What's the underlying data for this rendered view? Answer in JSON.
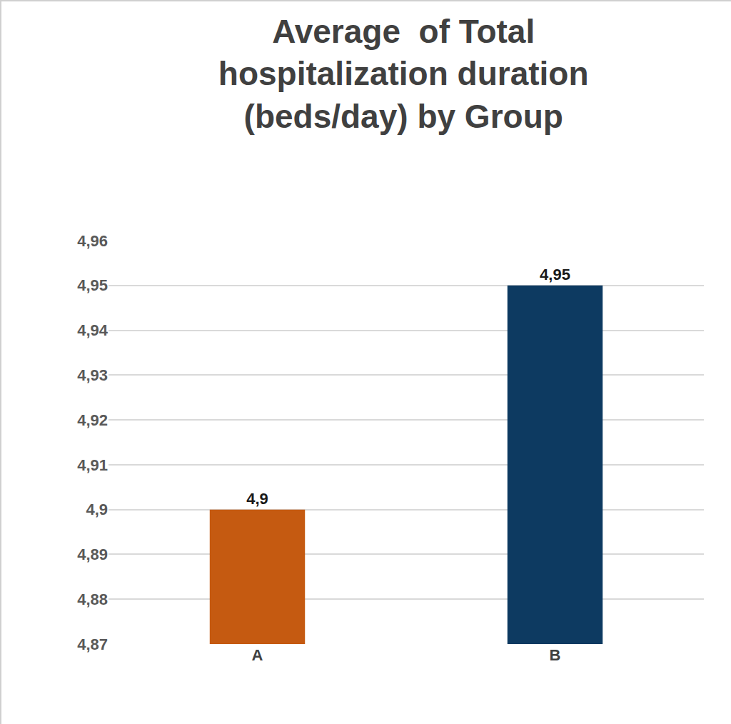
{
  "chart_data": {
    "type": "bar",
    "title": "Average  of Total\nhospitalization duration\n(beds/day) by Group",
    "categories": [
      "A",
      "B"
    ],
    "values": [
      4.9,
      4.95
    ],
    "value_labels": [
      "4,9",
      "4,95"
    ],
    "colors": [
      "#c55a11",
      "#0d3a61"
    ],
    "ylim": [
      4.87,
      4.96
    ],
    "yticks": [
      {
        "value": 4.87,
        "label": "4,87"
      },
      {
        "value": 4.88,
        "label": "4,88"
      },
      {
        "value": 4.89,
        "label": "4,89"
      },
      {
        "value": 4.9,
        "label": "4,9"
      },
      {
        "value": 4.91,
        "label": "4,91"
      },
      {
        "value": 4.92,
        "label": "4,92"
      },
      {
        "value": 4.93,
        "label": "4,93"
      },
      {
        "value": 4.94,
        "label": "4,94"
      },
      {
        "value": 4.95,
        "label": "4,95"
      },
      {
        "value": 4.96,
        "label": "4,96"
      }
    ],
    "grid": true,
    "data_labels": true
  }
}
